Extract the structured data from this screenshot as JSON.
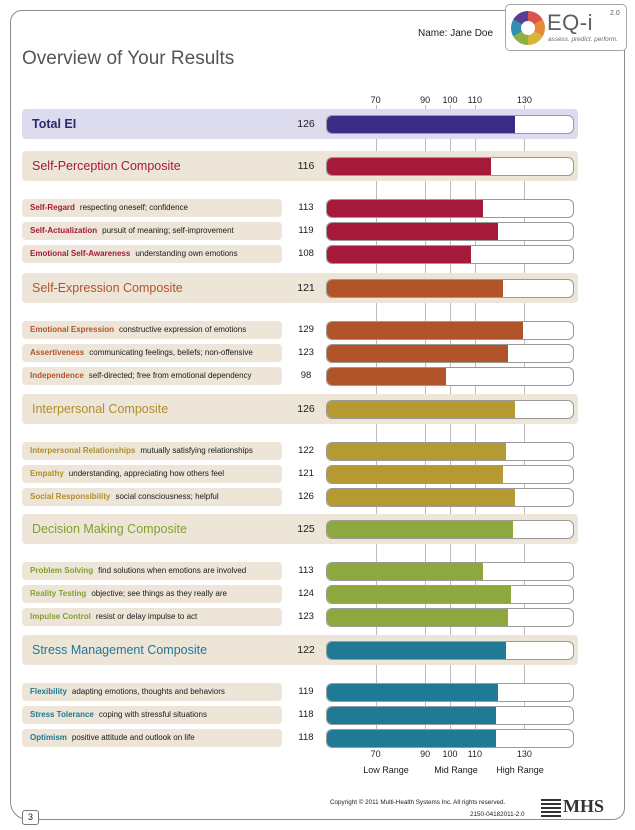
{
  "header": {
    "name_label": "Name:",
    "name_value": "Jane Doe",
    "title": "Overview of Your Results",
    "logo": {
      "brand": "EQ-i",
      "version": "2.0",
      "tagline": "assess. predict. perform.",
      "icon": "color-wheel-logo-icon"
    }
  },
  "footer": {
    "page_number": "3",
    "copyright": "Copyright © 2011 Multi-Health Systems Inc. All rights reserved.",
    "code": "2150-04182011-2.0",
    "publisher": "MHS",
    "publisher_icon": "mhs-stripes-logo-icon"
  },
  "chart_data": {
    "type": "bar",
    "orientation": "horizontal",
    "x_ticks": [
      70,
      90,
      100,
      110,
      130
    ],
    "xlim": [
      50,
      150
    ],
    "ranges": [
      "Low Range",
      "Mid Range",
      "High Range"
    ],
    "groups": [
      {
        "type": "total",
        "name": "Total EI",
        "score": 126,
        "color": "#3b2a86",
        "bg": "#dcdcee",
        "label_color": "#2a2a6e",
        "items": []
      },
      {
        "type": "composite",
        "name": "Self-Perception Composite",
        "score": 116,
        "color": "#a51a3a",
        "bg": "#ece5d8",
        "label_color": "#a51a3a",
        "items": [
          {
            "name": "Self-Regard",
            "desc": "respecting oneself; confidence",
            "score": 113
          },
          {
            "name": "Self-Actualization",
            "desc": "pursuit of meaning; self-improvement",
            "score": 119
          },
          {
            "name": "Emotional Self-Awareness",
            "desc": "understanding own emotions",
            "score": 108
          }
        ]
      },
      {
        "type": "composite",
        "name": "Self-Expression Composite",
        "score": 121,
        "color": "#b2542a",
        "bg": "#ece5d8",
        "label_color": "#b2542a",
        "items": [
          {
            "name": "Emotional Expression",
            "desc": "constructive expression of emotions",
            "score": 129
          },
          {
            "name": "Assertiveness",
            "desc": "communicating feelings, beliefs; non-offensive",
            "score": 123
          },
          {
            "name": "Independence",
            "desc": "self-directed; free from emotional dependency",
            "score": 98
          }
        ]
      },
      {
        "type": "composite",
        "name": "Interpersonal Composite",
        "score": 126,
        "color": "#b59a32",
        "bg": "#ece5d8",
        "label_color": "#b08f2a",
        "items": [
          {
            "name": "Interpersonal Relationships",
            "desc": "mutually satisfying relationships",
            "score": 122
          },
          {
            "name": "Empathy",
            "desc": "understanding, appreciating how others feel",
            "score": 121
          },
          {
            "name": "Social Responsibility",
            "desc": "social consciousness; helpful",
            "score": 126
          }
        ]
      },
      {
        "type": "composite",
        "name": "Decision Making Composite",
        "score": 125,
        "color": "#8fa83e",
        "bg": "#ece5d8",
        "label_color": "#84a032",
        "items": [
          {
            "name": "Problem Solving",
            "desc": "find solutions when emotions are involved",
            "score": 113
          },
          {
            "name": "Reality Testing",
            "desc": "objective; see things as they really are",
            "score": 124
          },
          {
            "name": "Impulse Control",
            "desc": "resist or delay impulse to act",
            "score": 123
          }
        ]
      },
      {
        "type": "composite",
        "name": "Stress Management Composite",
        "score": 122,
        "color": "#207a96",
        "bg": "#ece5d8",
        "label_color": "#1e7893",
        "items": [
          {
            "name": "Flexibility",
            "desc": "adapting emotions, thoughts and behaviors",
            "score": 119
          },
          {
            "name": "Stress Tolerance",
            "desc": "coping with stressful situations",
            "score": 118
          },
          {
            "name": "Optimism",
            "desc": "positive attitude and outlook on life",
            "score": 118
          }
        ]
      }
    ]
  }
}
